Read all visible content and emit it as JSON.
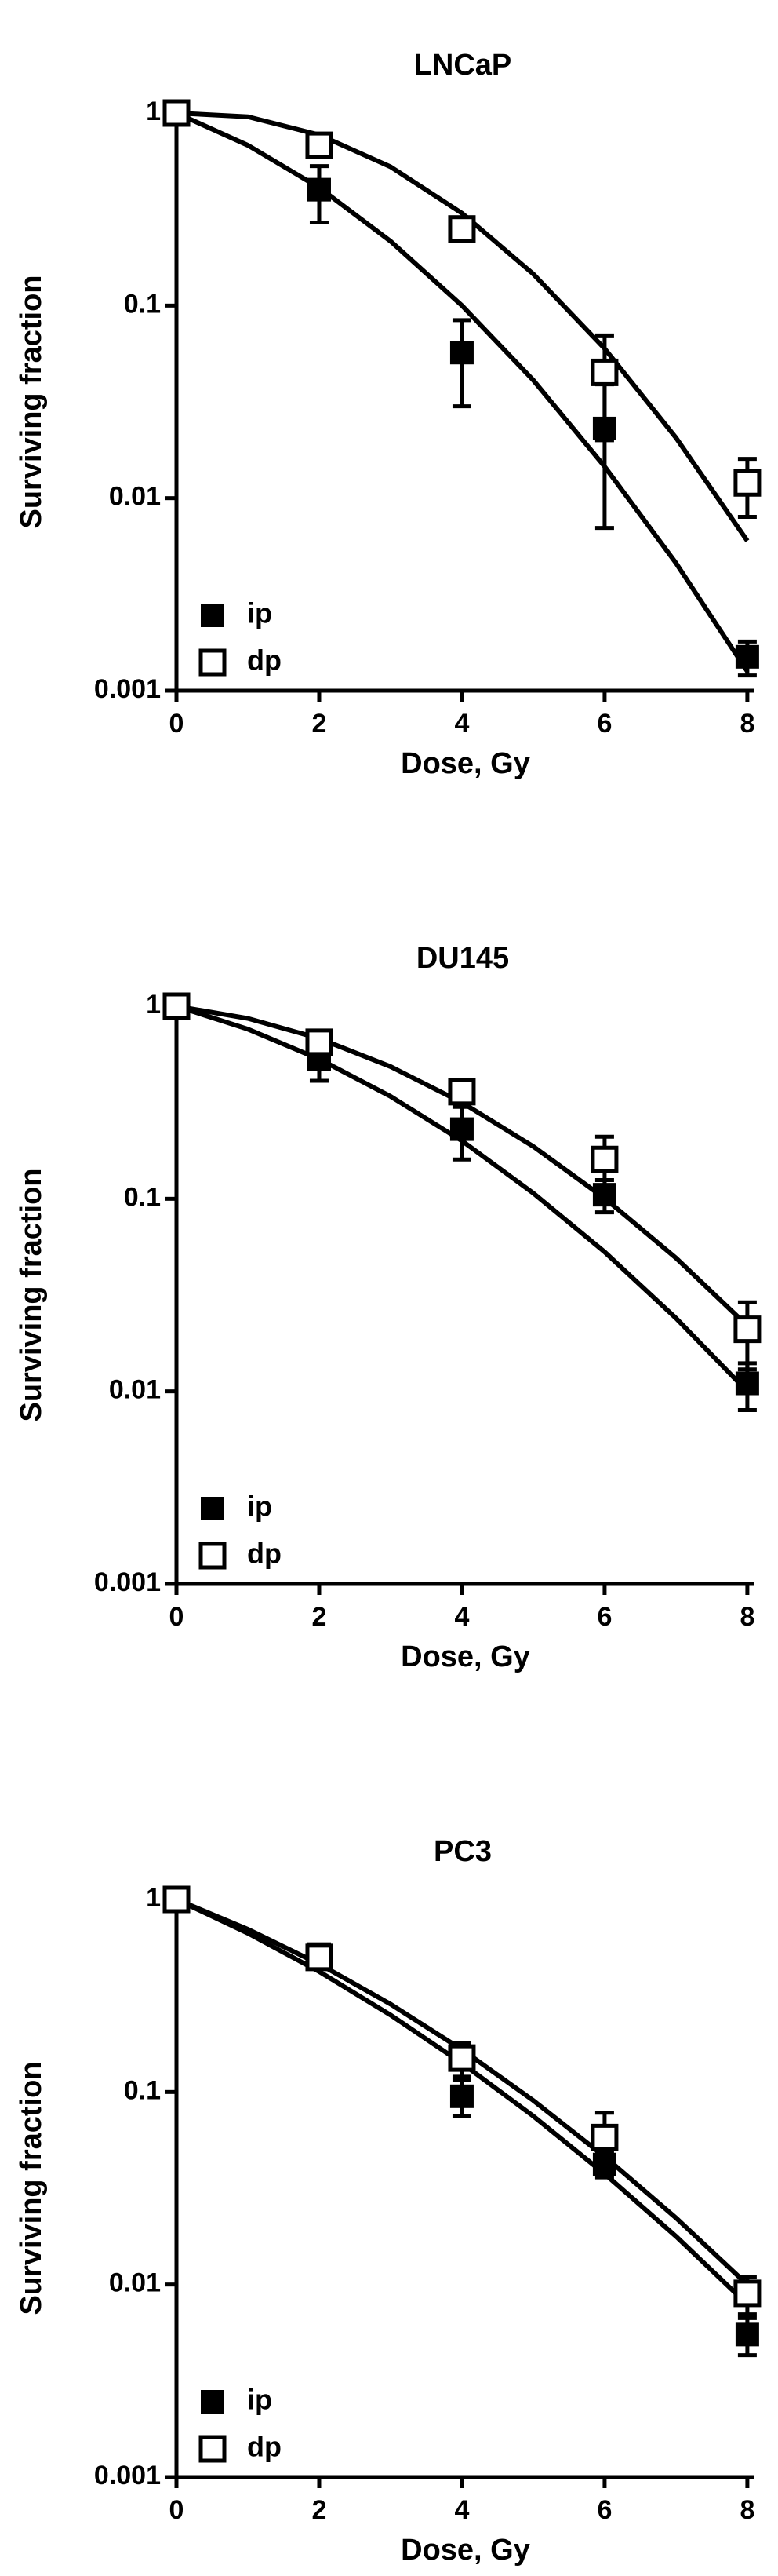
{
  "chart_data": [
    {
      "type": "scatter",
      "title": "LNCaP",
      "x_label": "Dose, Gy",
      "y_label": "Surviving fraction",
      "yscale": "log",
      "legend": "lower left",
      "xlim": [
        0,
        8.1
      ],
      "xticks": [
        0,
        2,
        4,
        6,
        8
      ],
      "ylim": [
        0.001,
        1
      ],
      "yticks": [
        1,
        0.1,
        0.01,
        0.001
      ],
      "x": [
        0,
        2,
        4,
        6,
        8
      ],
      "series": [
        {
          "name": "ip",
          "color": "#000000",
          "marker": "filled",
          "values": [
            1,
            0.4,
            0.057,
            0.023,
            0.0015
          ],
          "errors": [
            0,
            0.13,
            0.027,
            0.016,
            0.0003
          ]
        },
        {
          "name": "dp",
          "color": "#000000",
          "marker": "open",
          "values": [
            1,
            0.68,
            0.25,
            0.045,
            0.012
          ],
          "errors": [
            0,
            0.05,
            0.02,
            0.025,
            0.004
          ]
        }
      ],
      "fit_curves": [
        {
          "x": [
            0,
            1,
            2,
            3,
            4,
            5,
            6,
            7,
            8
          ],
          "values": [
            1,
            0.68,
            0.41,
            0.216,
            0.1,
            0.041,
            0.0146,
            0.0046,
            0.00126
          ]
        },
        {
          "x": [
            0,
            1,
            2,
            3,
            4,
            5,
            6,
            7,
            8
          ],
          "values": [
            1,
            0.957,
            0.77,
            0.526,
            0.302,
            0.146,
            0.0598,
            0.0206,
            0.006
          ]
        }
      ]
    },
    {
      "type": "scatter",
      "title": "DU145",
      "x_label": "Dose, Gy",
      "y_label": "Surviving fraction",
      "yscale": "log",
      "legend": "lower left",
      "xlim": [
        0,
        8.1
      ],
      "xticks": [
        0,
        2,
        4,
        6,
        8
      ],
      "ylim": [
        0.001,
        1
      ],
      "yticks": [
        1,
        0.1,
        0.01,
        0.001
      ],
      "x": [
        0,
        2,
        4,
        6,
        8
      ],
      "series": [
        {
          "name": "ip",
          "color": "#000000",
          "marker": "filled",
          "values": [
            1,
            0.53,
            0.23,
            0.105,
            0.011
          ],
          "errors": [
            0,
            0.12,
            0.07,
            0.02,
            0.003
          ]
        },
        {
          "name": "dp",
          "color": "#000000",
          "marker": "open",
          "values": [
            1,
            0.65,
            0.36,
            0.16,
            0.021
          ],
          "errors": [
            0,
            0.05,
            0.04,
            0.05,
            0.008
          ]
        }
      ],
      "fit_curves": [
        {
          "x": [
            0,
            1,
            2,
            3,
            4,
            5,
            6,
            7,
            8
          ],
          "values": [
            1,
            0.76,
            0.531,
            0.34,
            0.2,
            0.107,
            0.053,
            0.024,
            0.01
          ]
        },
        {
          "x": [
            0,
            1,
            2,
            3,
            4,
            5,
            6,
            7,
            8
          ],
          "values": [
            1,
            0.865,
            0.68,
            0.486,
            0.316,
            0.187,
            0.1007,
            0.0493,
            0.0219
          ]
        }
      ]
    },
    {
      "type": "scatter",
      "title": "PC3",
      "x_label": "Dose, Gy",
      "y_label": "Surviving fraction",
      "yscale": "log",
      "legend": "lower left",
      "xlim": [
        0,
        8.1
      ],
      "xticks": [
        0,
        2,
        4,
        6,
        8
      ],
      "ylim": [
        0.001,
        1
      ],
      "yticks": [
        1,
        0.1,
        0.01,
        0.001
      ],
      "x": [
        0,
        2,
        4,
        6,
        8
      ],
      "series": [
        {
          "name": "ip",
          "color": "#000000",
          "marker": "filled",
          "values": [
            1,
            0.52,
            0.095,
            0.042,
            0.0055
          ],
          "errors": [
            0,
            0.05,
            0.02,
            0.006,
            0.0012
          ]
        },
        {
          "name": "dp",
          "color": "#000000",
          "marker": "open",
          "values": [
            1,
            0.5,
            0.15,
            0.058,
            0.009
          ],
          "errors": [
            0,
            0.04,
            0.03,
            0.02,
            0.002
          ]
        }
      ],
      "fit_curves": [
        {
          "x": [
            0,
            1,
            2,
            3,
            4,
            5,
            6,
            7,
            8
          ],
          "values": [
            1,
            0.668,
            0.422,
            0.251,
            0.141,
            0.075,
            0.0376,
            0.0178,
            0.0079
          ]
        },
        {
          "x": [
            0,
            1,
            2,
            3,
            4,
            5,
            6,
            7,
            8
          ],
          "values": [
            1,
            0.7,
            0.462,
            0.286,
            0.166,
            0.0904,
            0.0462,
            0.0222,
            0.01
          ]
        }
      ]
    }
  ]
}
